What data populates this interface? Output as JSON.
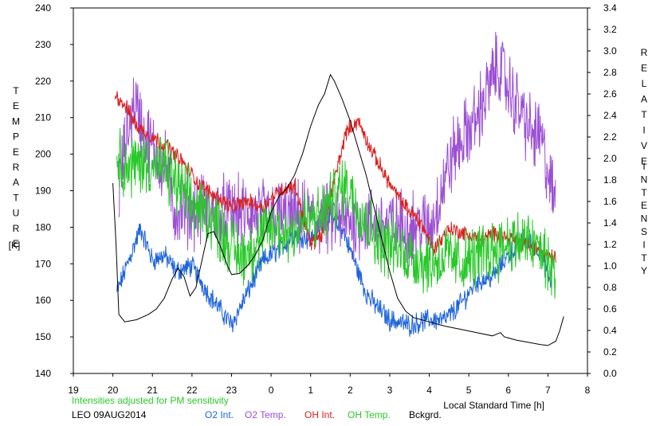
{
  "chart_data": {
    "type": "line",
    "xlabel": "Local Standard Time [h]",
    "x_ticks": [
      {
        "v": 19,
        "label": "19"
      },
      {
        "v": 20,
        "label": "20"
      },
      {
        "v": 21,
        "label": "21"
      },
      {
        "v": 22,
        "label": "22"
      },
      {
        "v": 23,
        "label": "23"
      },
      {
        "v": 24,
        "label": "0"
      },
      {
        "v": 25,
        "label": "1"
      },
      {
        "v": 26,
        "label": "2"
      },
      {
        "v": 27,
        "label": "3"
      },
      {
        "v": 28,
        "label": "4"
      },
      {
        "v": 29,
        "label": "5"
      },
      {
        "v": 30,
        "label": "6"
      },
      {
        "v": 31,
        "label": "7"
      },
      {
        "v": 32,
        "label": "8"
      }
    ],
    "xlim": [
      19,
      32
    ],
    "y_left": {
      "label_letters": [
        "T",
        "E",
        "M",
        "P",
        "E",
        "R",
        "A",
        "T",
        "U",
        "R",
        "E"
      ],
      "unit": "[K]",
      "lim": [
        140,
        240
      ],
      "ticks": [
        140,
        150,
        160,
        170,
        180,
        190,
        200,
        210,
        220,
        230,
        240
      ]
    },
    "y_right": {
      "label_letters_1": [
        "R",
        "E",
        "L",
        "A",
        "T",
        "I",
        "V",
        "E"
      ],
      "label_letters_2": [
        "I",
        "N",
        "T",
        "E",
        "N",
        "S",
        "I",
        "T",
        "Y"
      ],
      "lim": [
        0,
        3.4
      ],
      "ticks": [
        "0.0",
        "0.2",
        "0.4",
        "0.6",
        "0.8",
        "1.0",
        "1.2",
        "1.4",
        "1.6",
        "1.8",
        "2.0",
        "2.2",
        "2.4",
        "2.6",
        "2.8",
        "3.0",
        "3.2",
        "3.4"
      ]
    },
    "note": "Intensities adjusted for PM sensitivity",
    "station": "LEO 09AUG2014",
    "series": [
      {
        "name": "O2 Int.",
        "axis": "right",
        "color": "#1e64dc",
        "noise": 0.08,
        "points": [
          [
            20.1,
            0.75
          ],
          [
            20.35,
            1.0
          ],
          [
            20.7,
            1.35
          ],
          [
            21.0,
            1.05
          ],
          [
            21.3,
            1.1
          ],
          [
            21.6,
            0.95
          ],
          [
            22.0,
            1.0
          ],
          [
            22.4,
            0.75
          ],
          [
            22.8,
            0.55
          ],
          [
            23.0,
            0.45
          ],
          [
            23.4,
            0.75
          ],
          [
            23.8,
            1.05
          ],
          [
            24.2,
            1.15
          ],
          [
            24.6,
            1.3
          ],
          [
            25.0,
            1.25
          ],
          [
            25.4,
            1.45
          ],
          [
            25.8,
            1.35
          ],
          [
            26.1,
            1.05
          ],
          [
            26.4,
            0.75
          ],
          [
            26.6,
            0.65
          ],
          [
            27.0,
            0.5
          ],
          [
            27.5,
            0.45
          ],
          [
            28.0,
            0.5
          ],
          [
            28.4,
            0.5
          ],
          [
            28.8,
            0.65
          ],
          [
            29.2,
            0.85
          ],
          [
            29.6,
            0.9
          ],
          [
            30.0,
            1.1
          ],
          [
            30.4,
            1.25
          ],
          [
            30.8,
            1.15
          ],
          [
            31.1,
            0.8
          ]
        ]
      },
      {
        "name": "O2 Temp.",
        "axis": "left",
        "color": "#9b4fd4",
        "noise": 8,
        "points": [
          [
            20.15,
            190
          ],
          [
            20.35,
            205
          ],
          [
            20.55,
            215
          ],
          [
            20.8,
            205
          ],
          [
            21.1,
            200
          ],
          [
            21.4,
            195
          ],
          [
            21.5,
            185
          ],
          [
            28.05,
            180
          ],
          [
            28.3,
            190
          ],
          [
            28.6,
            200
          ],
          [
            28.9,
            205
          ],
          [
            29.2,
            210
          ],
          [
            29.5,
            218
          ],
          [
            29.75,
            225
          ],
          [
            30.0,
            218
          ],
          [
            30.3,
            212
          ],
          [
            30.6,
            205
          ],
          [
            30.8,
            205
          ],
          [
            31.0,
            195
          ],
          [
            31.2,
            185
          ]
        ]
      },
      {
        "name": "OH Int.",
        "axis": "right",
        "color": "#dc1e1e",
        "noise": 0.06,
        "points": [
          [
            20.05,
            2.6
          ],
          [
            20.3,
            2.5
          ],
          [
            20.6,
            2.3
          ],
          [
            21.0,
            2.2
          ],
          [
            21.4,
            2.1
          ],
          [
            21.8,
            1.95
          ],
          [
            22.2,
            1.75
          ],
          [
            22.6,
            1.65
          ],
          [
            23.0,
            1.55
          ],
          [
            23.4,
            1.6
          ],
          [
            23.8,
            1.55
          ],
          [
            24.2,
            1.7
          ],
          [
            24.6,
            1.75
          ],
          [
            25.0,
            1.2
          ],
          [
            25.3,
            1.3
          ],
          [
            25.6,
            1.8
          ],
          [
            25.9,
            2.25
          ],
          [
            26.2,
            2.35
          ],
          [
            26.5,
            2.1
          ],
          [
            26.8,
            1.9
          ],
          [
            27.1,
            1.7
          ],
          [
            27.4,
            1.55
          ],
          [
            27.8,
            1.4
          ],
          [
            28.1,
            1.15
          ],
          [
            28.5,
            1.35
          ],
          [
            28.9,
            1.3
          ],
          [
            29.3,
            1.25
          ],
          [
            29.7,
            1.3
          ],
          [
            30.1,
            1.25
          ],
          [
            30.5,
            1.2
          ],
          [
            30.8,
            1.15
          ],
          [
            31.2,
            1.08
          ]
        ]
      },
      {
        "name": "OH Temp.",
        "axis": "left",
        "color": "#28c828",
        "noise": 7,
        "points": [
          [
            20.1,
            200
          ],
          [
            20.4,
            196
          ],
          [
            20.7,
            198
          ],
          [
            21.0,
            197
          ],
          [
            21.3,
            196
          ],
          [
            21.6,
            192
          ],
          [
            22.0,
            186
          ],
          [
            22.4,
            184
          ],
          [
            22.8,
            178
          ],
          [
            23.2,
            172
          ],
          [
            23.6,
            175
          ],
          [
            24.0,
            180
          ],
          [
            24.4,
            178
          ],
          [
            24.8,
            182
          ],
          [
            25.2,
            182
          ],
          [
            25.6,
            188
          ],
          [
            25.9,
            192
          ],
          [
            26.2,
            186
          ],
          [
            26.5,
            180
          ],
          [
            26.8,
            176
          ],
          [
            27.2,
            174
          ],
          [
            27.6,
            172
          ],
          [
            28.0,
            170
          ],
          [
            28.4,
            172
          ],
          [
            28.8,
            170
          ],
          [
            29.2,
            172
          ],
          [
            29.6,
            174
          ],
          [
            30.0,
            176
          ],
          [
            30.4,
            176
          ],
          [
            30.8,
            174
          ],
          [
            31.2,
            166
          ]
        ]
      },
      {
        "name": "Bckgrd.",
        "axis": "right",
        "color": "#000000",
        "noise": 0,
        "points": [
          [
            20.0,
            1.77
          ],
          [
            20.08,
            1.2
          ],
          [
            20.15,
            0.55
          ],
          [
            20.3,
            0.48
          ],
          [
            20.6,
            0.5
          ],
          [
            20.9,
            0.55
          ],
          [
            21.1,
            0.6
          ],
          [
            21.3,
            0.7
          ],
          [
            21.5,
            0.88
          ],
          [
            21.65,
            0.98
          ],
          [
            21.8,
            0.9
          ],
          [
            21.95,
            0.72
          ],
          [
            22.1,
            0.8
          ],
          [
            22.25,
            1.05
          ],
          [
            22.4,
            1.3
          ],
          [
            22.55,
            1.32
          ],
          [
            22.7,
            1.2
          ],
          [
            22.9,
            1.0
          ],
          [
            23.0,
            0.92
          ],
          [
            23.2,
            0.93
          ],
          [
            23.4,
            1.0
          ],
          [
            23.6,
            1.1
          ],
          [
            23.8,
            1.25
          ],
          [
            24.0,
            1.5
          ],
          [
            24.2,
            1.65
          ],
          [
            24.4,
            1.72
          ],
          [
            24.6,
            1.85
          ],
          [
            24.8,
            2.05
          ],
          [
            25.0,
            2.3
          ],
          [
            25.2,
            2.5
          ],
          [
            25.35,
            2.6
          ],
          [
            25.5,
            2.78
          ],
          [
            25.6,
            2.72
          ],
          [
            25.8,
            2.55
          ],
          [
            26.0,
            2.35
          ],
          [
            26.2,
            2.1
          ],
          [
            26.4,
            1.85
          ],
          [
            26.6,
            1.55
          ],
          [
            26.8,
            1.25
          ],
          [
            27.0,
            0.95
          ],
          [
            27.2,
            0.7
          ],
          [
            27.4,
            0.58
          ],
          [
            27.6,
            0.52
          ],
          [
            27.8,
            0.5
          ],
          [
            28.0,
            0.48
          ],
          [
            28.4,
            0.44
          ],
          [
            28.8,
            0.41
          ],
          [
            29.2,
            0.38
          ],
          [
            29.6,
            0.35
          ],
          [
            29.8,
            0.38
          ],
          [
            29.9,
            0.34
          ],
          [
            30.2,
            0.31
          ],
          [
            30.5,
            0.29
          ],
          [
            30.8,
            0.27
          ],
          [
            31.0,
            0.26
          ],
          [
            31.2,
            0.3
          ],
          [
            31.3,
            0.4
          ],
          [
            31.4,
            0.53
          ]
        ]
      }
    ]
  }
}
